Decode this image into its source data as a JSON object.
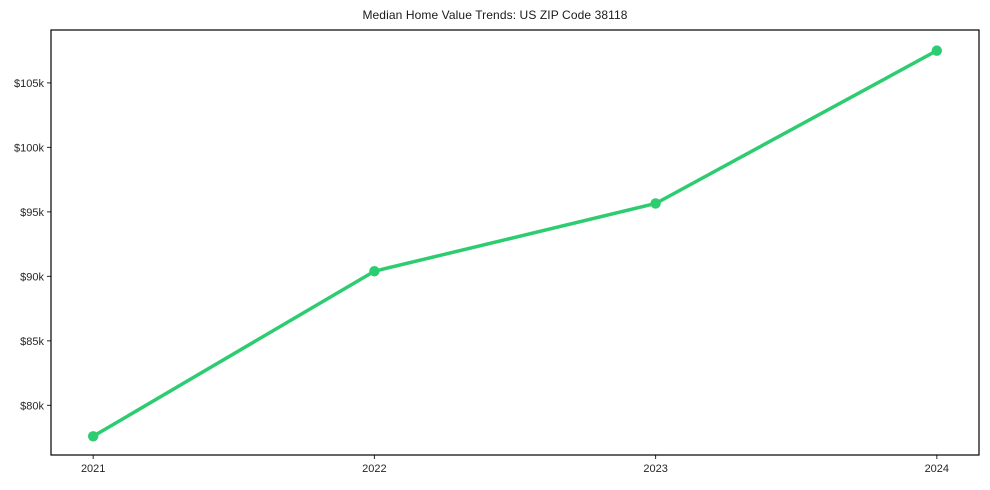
{
  "chart_data": {
    "type": "line",
    "title": "Median Home Value Trends: US ZIP Code 38118",
    "x": [
      2021,
      2022,
      2023,
      2024
    ],
    "x_tick_labels": [
      "2021",
      "2022",
      "2023",
      "2024"
    ],
    "series": [
      {
        "name": "Median Home Value",
        "values": [
          77600,
          90400,
          95650,
          107500
        ]
      }
    ],
    "y_ticks": [
      80000,
      85000,
      90000,
      95000,
      100000,
      105000
    ],
    "y_tick_labels": [
      "$80k",
      "$85k",
      "$90k",
      "$95k",
      "$100k",
      "$105k"
    ],
    "xlim": [
      2020.85,
      2024.15
    ],
    "ylim": [
      76150,
      109100
    ],
    "line_color": "#2ECC71",
    "axis_color": "#000000",
    "tick_color": "#262626",
    "grid": false,
    "legend_position": "none",
    "xlabel": "",
    "ylabel": ""
  }
}
